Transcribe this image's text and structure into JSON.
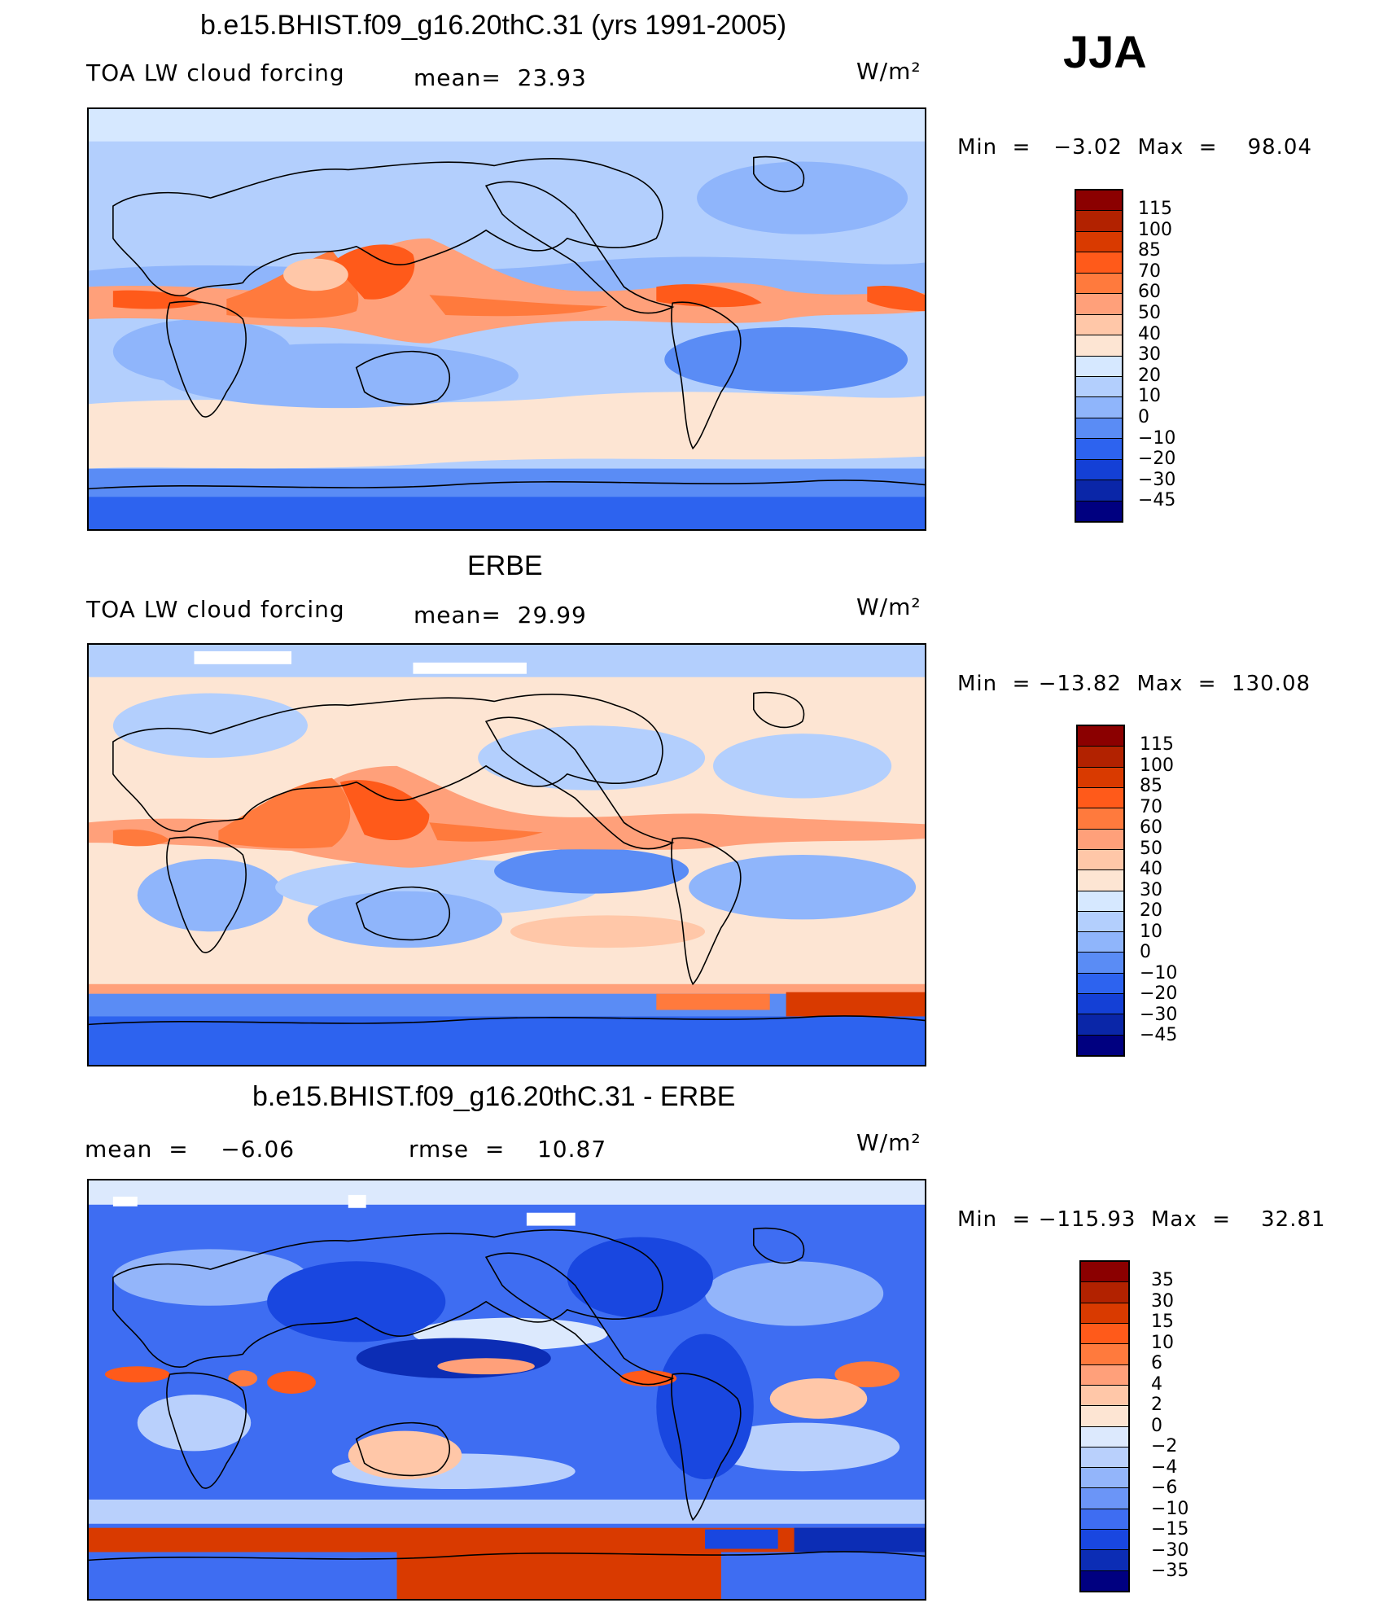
{
  "season": "JJA",
  "colors": {
    "abs_scale": [
      "#8b0000",
      "#b22200",
      "#d93a00",
      "#ff5a1a",
      "#ff7a3d",
      "#ffa07a",
      "#ffc7a8",
      "#fde5d3",
      "#d6e8ff",
      "#b3cffd",
      "#8fb5fb",
      "#5a8cf5",
      "#2d63ef",
      "#1440d6",
      "#0a26a8",
      "#000080"
    ],
    "diff_scale": [
      "#8b0000",
      "#b22200",
      "#d93a00",
      "#ff5a1a",
      "#ff7a3d",
      "#ffa07a",
      "#ffc7a8",
      "#fde5d3",
      "#dce9fd",
      "#b9d0fc",
      "#93b5fa",
      "#6b95f7",
      "#3e6df2",
      "#1947e0",
      "#0c2db5",
      "#000080"
    ],
    "land_outline": "#000000"
  },
  "panels": [
    {
      "title": "b.e15.BHIST.f09_g16.20thC.31 (yrs 1991-2005)",
      "left_label": "TOA LW cloud forcing",
      "stat_label": "mean=  23.93",
      "units": "W/m²",
      "minmax": "Min  =   −3.02  Max  =    98.04",
      "colorbar_labels": [
        "115",
        "100",
        "85",
        "70",
        "60",
        "50",
        "40",
        "30",
        "20",
        "10",
        "0",
        "−10",
        "−20",
        "−30",
        "−45"
      ]
    },
    {
      "title": "ERBE",
      "left_label": "TOA LW cloud forcing",
      "stat_label": "mean=  29.99",
      "units": "W/m²",
      "minmax": "Min  = −13.82  Max  =  130.08",
      "colorbar_labels": [
        "115",
        "100",
        "85",
        "70",
        "60",
        "50",
        "40",
        "30",
        "20",
        "10",
        "0",
        "−10",
        "−20",
        "−30",
        "−45"
      ]
    },
    {
      "title": "b.e15.BHIST.f09_g16.20thC.31 - ERBE",
      "left_label": "mean  =    −6.06",
      "stat_label": "rmse  =    10.87",
      "units": "W/m²",
      "minmax": "Min  = −115.93  Max  =    32.81",
      "colorbar_labels": [
        "35",
        "30",
        "15",
        "10",
        "6",
        "4",
        "2",
        "0",
        "−2",
        "−4",
        "−6",
        "−10",
        "−15",
        "−30",
        "−35"
      ]
    }
  ]
}
